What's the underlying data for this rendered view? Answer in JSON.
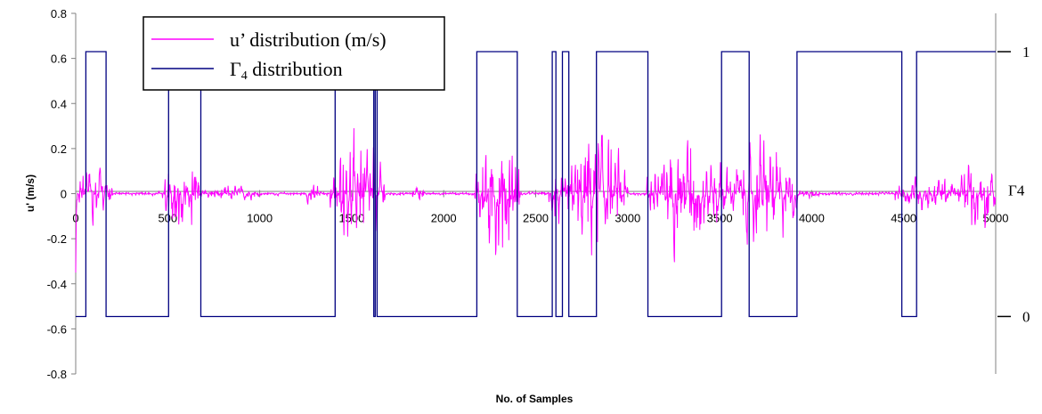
{
  "chart_data": {
    "type": "line",
    "xlabel": "No. of Samples",
    "ylabel": "u' (m/s)",
    "xlim": [
      0,
      5000
    ],
    "ylim": [
      -0.8,
      0.8
    ],
    "x_ticks": [
      "0",
      "500",
      "1000",
      "1500",
      "2000",
      "2500",
      "3000",
      "3500",
      "4000",
      "4500",
      "5000"
    ],
    "y_ticks": [
      "-0.8",
      "-0.6",
      "-0.4",
      "-0.2",
      "0",
      "0.2",
      "0.4",
      "0.6",
      "0.8"
    ],
    "secondary_axis_labels": [
      {
        "text": "1",
        "value": 0.63
      },
      {
        "text": "Γ4",
        "value": 0.0
      },
      {
        "text": "0",
        "value": -0.545
      }
    ],
    "grid": false,
    "legend_position": "top-left",
    "series": [
      {
        "name": "u’ distribution (m/s)",
        "color": "#ff00ff",
        "style": "noisy-signal",
        "bursts": [
          {
            "start": 0,
            "end": 200,
            "amp": 0.2
          },
          {
            "start": 470,
            "end": 680,
            "amp": 0.3
          },
          {
            "start": 680,
            "end": 1000,
            "amp": 0.06
          },
          {
            "start": 1250,
            "end": 1330,
            "amp": 0.1
          },
          {
            "start": 1380,
            "end": 1680,
            "amp": 0.42
          },
          {
            "start": 1830,
            "end": 1900,
            "amp": 0.08
          },
          {
            "start": 2170,
            "end": 2420,
            "amp": 0.5
          },
          {
            "start": 2570,
            "end": 2660,
            "amp": 0.25
          },
          {
            "start": 2660,
            "end": 3000,
            "amp": 0.45
          },
          {
            "start": 3100,
            "end": 3560,
            "amp": 0.4
          },
          {
            "start": 3560,
            "end": 3920,
            "amp": 0.4
          },
          {
            "start": 3920,
            "end": 4060,
            "amp": 0.04
          },
          {
            "start": 4450,
            "end": 4800,
            "amp": 0.14
          },
          {
            "start": 4800,
            "end": 5000,
            "amp": 0.3
          }
        ]
      },
      {
        "name": "Γ4 distribution",
        "color": "#000080",
        "style": "step",
        "high_value": 0.63,
        "low_value": -0.545,
        "x": [
          0,
          55,
          55,
          165,
          165,
          505,
          505,
          680,
          680,
          1410,
          1410,
          1620,
          1620,
          1628,
          1628,
          1638,
          1638,
          1645,
          1645,
          2180,
          2180,
          2400,
          2400,
          2590,
          2590,
          2610,
          2610,
          2645,
          2645,
          2680,
          2680,
          2830,
          2830,
          3110,
          3110,
          3510,
          3510,
          3660,
          3660,
          3920,
          3920,
          4490,
          4490,
          4570,
          4570,
          4800,
          4800,
          5000
        ],
        "y": [
          -0.545,
          -0.545,
          0.63,
          0.63,
          -0.545,
          -0.545,
          0.63,
          0.63,
          -0.545,
          -0.545,
          0.63,
          0.63,
          -0.545,
          -0.545,
          0.63,
          0.63,
          -0.545,
          -0.545,
          -0.545,
          -0.545,
          0.63,
          0.63,
          -0.545,
          -0.545,
          0.63,
          0.63,
          -0.545,
          -0.545,
          0.63,
          0.63,
          -0.545,
          -0.545,
          0.63,
          0.63,
          -0.545,
          -0.545,
          0.63,
          0.63,
          -0.545,
          -0.545,
          0.63,
          0.63,
          -0.545,
          -0.545,
          0.63,
          0.63,
          0.63,
          0.63
        ]
      }
    ]
  },
  "legend": {
    "items": [
      {
        "label": "u’ distribution (m/s)",
        "color": "#ff00ff"
      },
      {
        "label_main": "Γ",
        "label_sub": "4",
        "label_rest": " distribution",
        "color": "#000080"
      }
    ]
  }
}
